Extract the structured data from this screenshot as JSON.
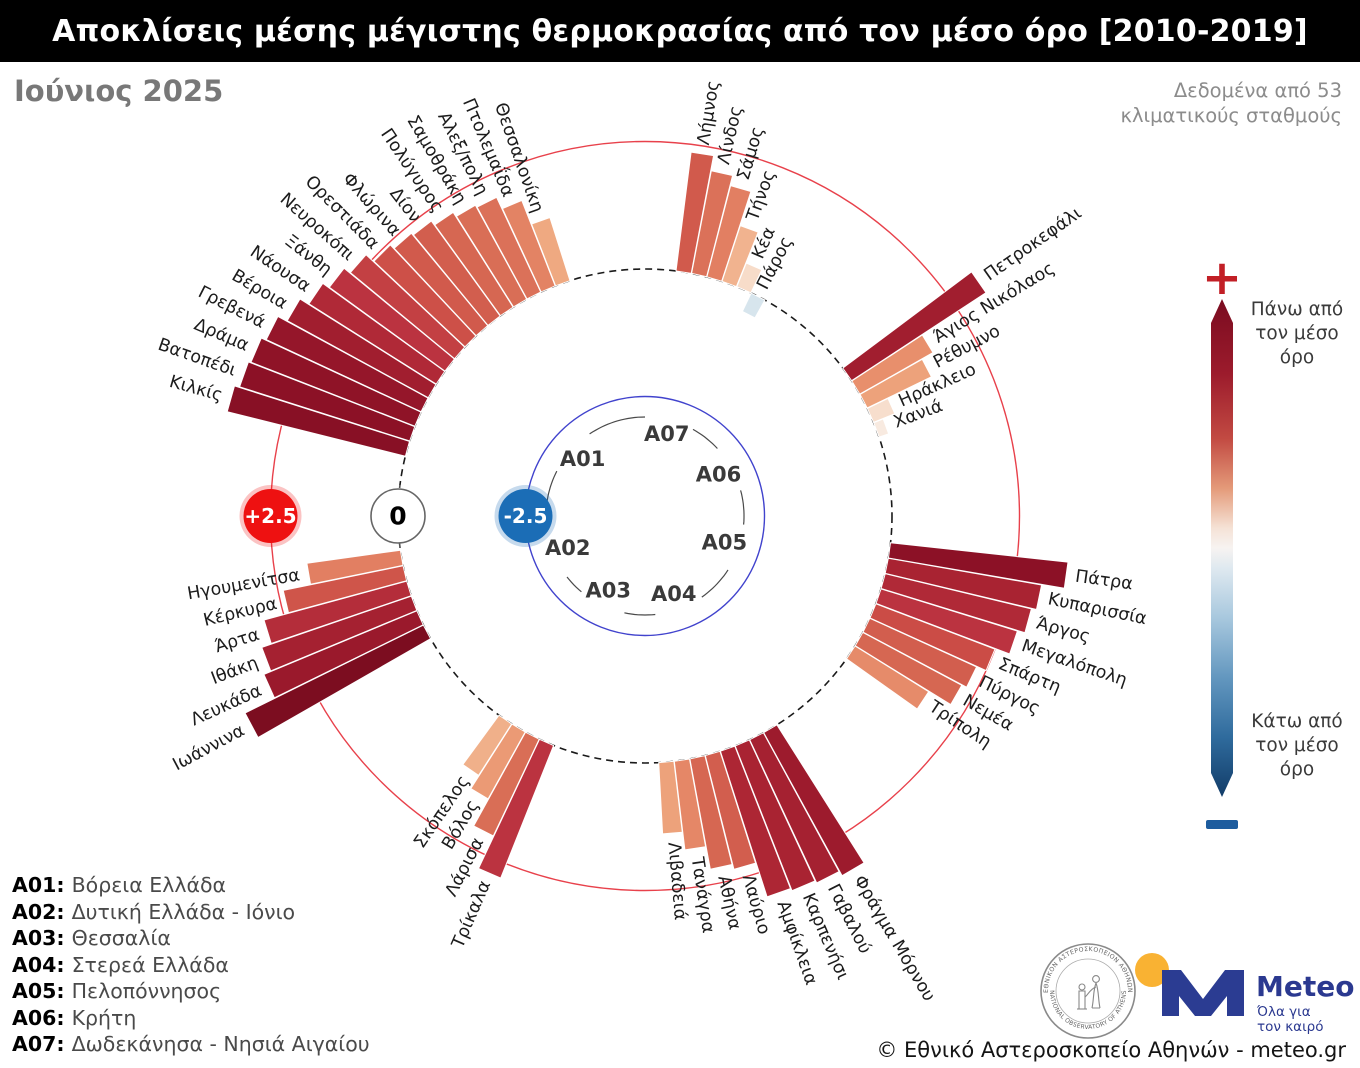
{
  "header": {
    "title": "Αποκλίσεις μέσης μέγιστης θερμοκρασίας από τον μέσο όρο [2010-2019]",
    "month": "Ιούνιος 2025",
    "source_line1": "Δεδομένα από 53",
    "source_line2": "κλιματικούς σταθμούς"
  },
  "scale_markers": {
    "plus": "+2.5",
    "zero": "0",
    "minus": "-2.5"
  },
  "colorbar": {
    "plus_sign": "+",
    "minus_sign": "-",
    "above_lines": [
      "Πάνω από",
      "τον μέσο",
      "όρο"
    ],
    "below_lines": [
      "Κάτω από",
      "τον μέσο",
      "όρο"
    ],
    "top_color": "#7a0c20",
    "mid_color": "#f7f3f1",
    "bottom_color": "#123c68"
  },
  "legend": {
    "items": [
      {
        "code": "A01:",
        "name": "Βόρεια Ελλάδα"
      },
      {
        "code": "A02:",
        "name": "Δυτική Ελλάδα - Ιόνιο"
      },
      {
        "code": "A03:",
        "name": "Θεσσαλία"
      },
      {
        "code": "A04:",
        "name": "Στερεά Ελλάδα"
      },
      {
        "code": "A05:",
        "name": "Πελοπόννησος"
      },
      {
        "code": "A06:",
        "name": "Κρήτη"
      },
      {
        "code": "A07:",
        "name": "Δωδεκάνησα - Νησιά Αιγαίου"
      }
    ]
  },
  "footer": {
    "copyright": "© Εθνικό Αστεροσκοπείο Αθηνών - meteo.gr",
    "seal_text_top": "ΕΘΝΙΚΟΝ ΑΣΤΕΡΟΣΚΟΠΕΙΟΝ ΑΘΗΝΩΝ",
    "seal_text_bottom": "NATIONAL OBSERVATORY OF ATHENS",
    "meteo_name": "Meteo",
    "meteo_tagline1": "Όλα για",
    "meteo_tagline2": "τον καιρό"
  },
  "chart_data": {
    "type": "bar",
    "projection": "polar",
    "value_unit": "°C deviation from 2010-2019 mean",
    "angle_step_deg": 3.65,
    "reference_rings": [
      {
        "value": 2.5,
        "style": "solid",
        "color": "#e8414b"
      },
      {
        "value": 0,
        "style": "dashed",
        "color": "#1a1a1a"
      },
      {
        "value": -2.5,
        "style": "solid",
        "color": "#4143cd"
      }
    ],
    "groups": [
      {
        "code": "A07",
        "name": "Δωδεκάνησα - Νησιά Αιγαίου",
        "start_angle_deg": 9.0,
        "label_angle_deg": 15,
        "stations": [
          "Λήμνος",
          "Λίνδος",
          "Σάμος",
          "Τήνος",
          "Κέα",
          "Πάρος"
        ],
        "values": [
          2.35,
          2.05,
          1.85,
          1.15,
          0.5,
          -0.4
        ]
      },
      {
        "code": "A06",
        "name": "Κρήτη",
        "start_angle_deg": 55.0,
        "label_angle_deg": 61,
        "stations": [
          "Πετροκεφάλι",
          "Άγιος Νικόλαος",
          "Ρέθυμνο",
          "Ηράκλειο",
          "Χανιά"
        ],
        "values": [
          3.15,
          1.65,
          1.4,
          0.45,
          0.2
        ]
      },
      {
        "code": "A05",
        "name": "Πελοπόννησος",
        "start_angle_deg": 98.0,
        "label_angle_deg": 109,
        "stations": [
          "Πάτρα",
          "Κυπαρισσία",
          "Άργος",
          "Μεγαλόπολη",
          "Σπάρτη",
          "Πύργος",
          "Νεμέα",
          "Τρίπολη"
        ],
        "values": [
          3.5,
          3.05,
          2.95,
          2.8,
          2.5,
          2.3,
          2.2,
          1.7
        ]
      },
      {
        "code": "A04",
        "name": "Στερεά Ελλάδα",
        "start_angle_deg": 149.5,
        "label_angle_deg": 160,
        "stations": [
          "Φράγμα Μόρνου",
          "Γαβαλού",
          "Καρπενήσι",
          "Αμφίκλεια",
          "Λαύριο",
          "Αθήνα",
          "Τανάγρα",
          "Λιβαδειά"
        ],
        "values": [
          3.2,
          3.1,
          3.05,
          3.0,
          2.3,
          2.2,
          1.75,
          1.4
        ]
      },
      {
        "code": "A03",
        "name": "Θεσσαλία",
        "start_angle_deg": 203.5,
        "label_angle_deg": 206,
        "stations": [
          "Τρίκαλα",
          "Λάρισα",
          "Βόλος",
          "Σκόπελος"
        ],
        "values": [
          2.8,
          2.1,
          1.5,
          1.2
        ]
      },
      {
        "code": "A02",
        "name": "Δυτική Ελλάδα - Ιόνιο",
        "start_angle_deg": 242.0,
        "label_angle_deg": 247,
        "stations": [
          "Ιωάννινα",
          "Λευκάδα",
          "Ιθάκη",
          "Άρτα",
          "Κέρκυρα",
          "Ηγουμενίτσα"
        ],
        "values": [
          3.9,
          3.25,
          3.1,
          2.9,
          2.4,
          1.85
        ]
      },
      {
        "code": "A01",
        "name": "Βόρεια Ελλάδα",
        "start_angle_deg": 285.8,
        "label_angle_deg": 312,
        "stations": [
          "Κιλκίς",
          "Βατοπέδι",
          "Δράμα",
          "Γρεβενά",
          "Βέροια",
          "Νάουσα",
          "Ξάνθη",
          "Νευροκόπι",
          "Ορεστιάδα",
          "Φλώρινα",
          "Δίον",
          "Πολύγυρος",
          "Σαμοθράκη",
          "Αλεξ/πολη",
          "Πτολεμαΐδα",
          "Θεσσαλονίκη"
        ],
        "values": [
          3.6,
          3.5,
          3.45,
          3.35,
          3.15,
          2.95,
          2.8,
          2.65,
          2.45,
          2.35,
          2.3,
          2.2,
          2.1,
          2.05,
          1.8,
          1.3
        ]
      }
    ],
    "colormap_stops": [
      [
        -1.0,
        "#9fc4dc"
      ],
      [
        -0.5,
        "#cfe1ed"
      ],
      [
        0,
        "#f9f3ef"
      ],
      [
        0.5,
        "#f7dcc9"
      ],
      [
        1.0,
        "#f3bd9d"
      ],
      [
        1.3,
        "#efa981"
      ],
      [
        1.6,
        "#e9936f"
      ],
      [
        1.9,
        "#e07b5f"
      ],
      [
        2.2,
        "#d66752"
      ],
      [
        2.5,
        "#cb4c46"
      ],
      [
        2.8,
        "#bb3340"
      ],
      [
        3.0,
        "#ad2634"
      ],
      [
        3.2,
        "#9d1b2d"
      ],
      [
        3.5,
        "#8c1126"
      ],
      [
        4.0,
        "#780c1f"
      ]
    ]
  }
}
